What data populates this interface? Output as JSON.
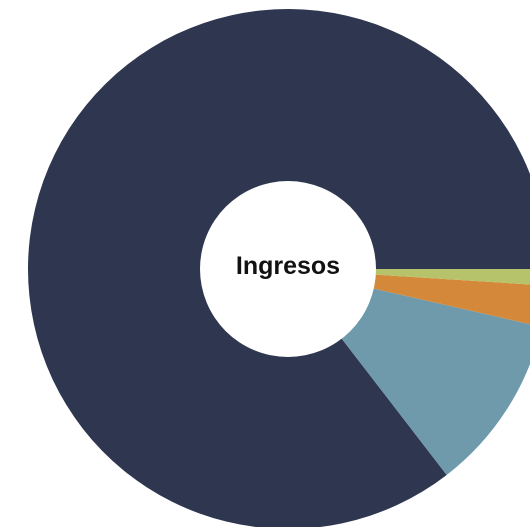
{
  "chart_data": {
    "type": "pie",
    "variant": "donut",
    "center_label": "Ingresos",
    "categories": [
      "",
      "",
      "",
      ""
    ],
    "values": [
      0.8545,
      0.1098,
      0.0255,
      0.0102
    ],
    "colors": [
      "#2f3650",
      "#6e9aac",
      "#d4893a",
      "#b7c36a"
    ],
    "start_direction": "right",
    "order": "counterclockwise",
    "legend": "none",
    "data_labels": "none"
  }
}
